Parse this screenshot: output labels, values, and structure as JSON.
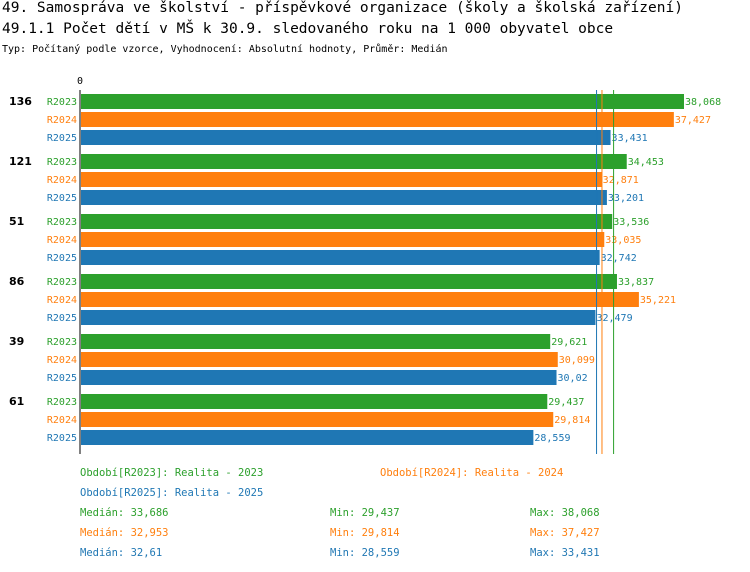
{
  "header": {
    "title": "49. Samospráva ve školství - příspěvkové organizace (školy a školská zařízení)",
    "subtitle": "49.1.1 Počet dětí v MŠ k 30.9. sledovaného roku na 1 000 obyvatel obce",
    "type_line": "Typ: Počítaný podle vzorce, Vyhodnocení: Absolutní hodnoty, Průměr: Medián"
  },
  "colors": {
    "R2023": "#2ca02c",
    "R2024": "#ff7f0e",
    "R2025": "#1f77b4"
  },
  "chart_data": {
    "type": "bar",
    "orientation": "horizontal",
    "axis_zero_label": "0",
    "categories": [
      "136",
      "121",
      "51",
      "86",
      "39",
      "61"
    ],
    "series": [
      {
        "name": "R2023",
        "values": [
          38.068,
          34.453,
          33.536,
          33.837,
          29.621,
          29.437
        ],
        "labels": [
          "38,068",
          "34,453",
          "33,536",
          "33,837",
          "29,621",
          "29,437"
        ]
      },
      {
        "name": "R2024",
        "values": [
          37.427,
          32.871,
          33.035,
          35.221,
          30.099,
          29.814
        ],
        "labels": [
          "37,427",
          "32,871",
          "33,035",
          "35,221",
          "30,099",
          "29,814"
        ]
      },
      {
        "name": "R2025",
        "values": [
          33.431,
          33.201,
          32.742,
          32.479,
          30.02,
          28.559
        ],
        "labels": [
          "33,431",
          "33,201",
          "32,742",
          "32,479",
          "30,02",
          "28,559"
        ]
      }
    ],
    "median_lines": [
      {
        "series": "R2023",
        "value": 33.686
      },
      {
        "series": "R2024",
        "value": 32.953
      },
      {
        "series": "R2025",
        "value": 32.61
      }
    ],
    "xlim": [
      0,
      38.068
    ]
  },
  "legend": {
    "r2023": "Období[R2023]: Realita - 2023",
    "r2024": "Období[R2024]: Realita - 2024",
    "r2025": "Období[R2025]: Realita - 2025",
    "stats": [
      {
        "median": "Medián: 33,686",
        "min": "Min: 29,437",
        "max": "Max: 38,068"
      },
      {
        "median": "Medián: 32,953",
        "min": "Min: 29,814",
        "max": "Max: 37,427"
      },
      {
        "median": "Medián: 32,61",
        "min": "Min: 28,559",
        "max": "Max: 33,431"
      }
    ]
  }
}
